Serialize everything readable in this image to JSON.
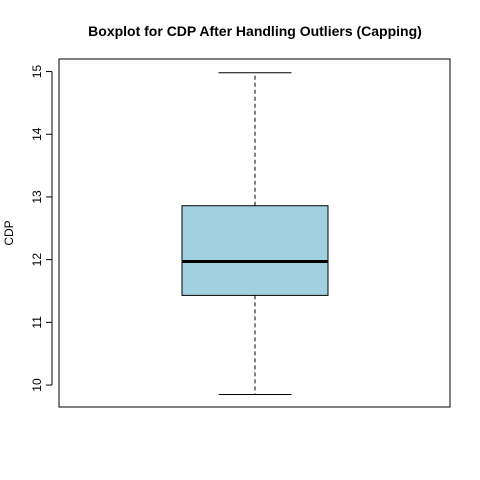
{
  "chart_data": {
    "type": "boxplot",
    "title": "Boxplot for CDP After Handling Outliers (Capping)",
    "xlabel": "",
    "ylabel": "CDP",
    "ylim": [
      9.65,
      15.2
    ],
    "yticks": [
      10,
      11,
      12,
      13,
      14,
      15
    ],
    "grid": false,
    "box": {
      "lower_whisker": 9.85,
      "q1": 11.43,
      "median": 11.97,
      "q3": 12.86,
      "upper_whisker": 14.98,
      "fill_color": "#a1d1e1",
      "border_color": "#000000"
    }
  }
}
